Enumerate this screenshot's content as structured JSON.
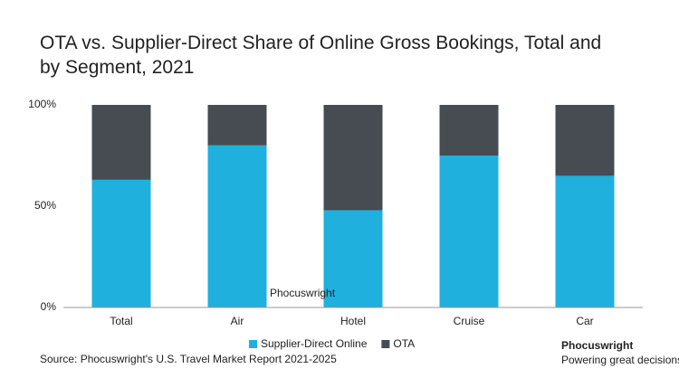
{
  "chart_data": {
    "type": "stacked_bar",
    "title": "OTA vs. Supplier-Direct Share of Online Gross Bookings, Total and by Segment, 2021",
    "categories": [
      "Total",
      "Air",
      "Hotel",
      "Cruise",
      "Car"
    ],
    "series": [
      {
        "name": "Supplier-Direct Online",
        "color": "#1fb0dd",
        "values": [
          63,
          80,
          48,
          75,
          65
        ]
      },
      {
        "name": "OTA",
        "color": "#474c53",
        "values": [
          37,
          20,
          52,
          25,
          35
        ]
      }
    ],
    "ylim": [
      0,
      100
    ],
    "yticks": [
      {
        "value": 0,
        "label": "0%"
      },
      {
        "value": 50,
        "label": "50%"
      },
      {
        "value": 100,
        "label": "100%"
      }
    ],
    "source": "Source: Phocuswright's U.S. Travel Market Report 2021-2025",
    "watermark": "Phocuswright",
    "brand": "Phocuswright",
    "tagline": "Powering great decisions."
  }
}
